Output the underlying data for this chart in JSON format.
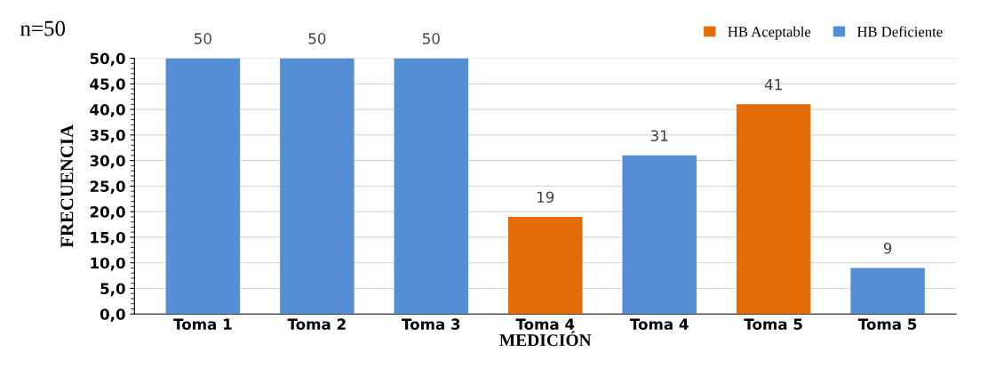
{
  "chart_data": {
    "type": "bar",
    "categories": [
      "Toma 1",
      "Toma 2",
      "Toma 3",
      "Toma 4",
      "Toma 4",
      "Toma 5",
      "Toma 5"
    ],
    "series": [
      {
        "name": "HB Aceptable",
        "color": "#e36c0a",
        "values": [
          null,
          null,
          null,
          19,
          null,
          41,
          null
        ]
      },
      {
        "name": "HB Deficiente",
        "color": "#558ed5",
        "values": [
          50,
          50,
          50,
          null,
          31,
          null,
          9
        ]
      }
    ],
    "xlabel": "MEDICIÓN",
    "ylabel": "FRECUENCIA",
    "ylim": [
      0,
      50
    ],
    "yticks": [
      {
        "value": 0,
        "label": "0,0"
      },
      {
        "value": 5,
        "label": "5,0"
      },
      {
        "value": 10,
        "label": "10,0"
      },
      {
        "value": 15,
        "label": "15,0"
      },
      {
        "value": 20,
        "label": "20,0"
      },
      {
        "value": 25,
        "label": "25,0"
      },
      {
        "value": 30,
        "label": "30,0"
      },
      {
        "value": 35,
        "label": "35,0"
      },
      {
        "value": 40,
        "label": "40,0"
      },
      {
        "value": 45,
        "label": "45,0"
      },
      {
        "value": 50,
        "label": "50,0"
      }
    ],
    "grid": "y",
    "legend": "top right",
    "data_labels": true,
    "annotations": [
      "n=50"
    ]
  }
}
